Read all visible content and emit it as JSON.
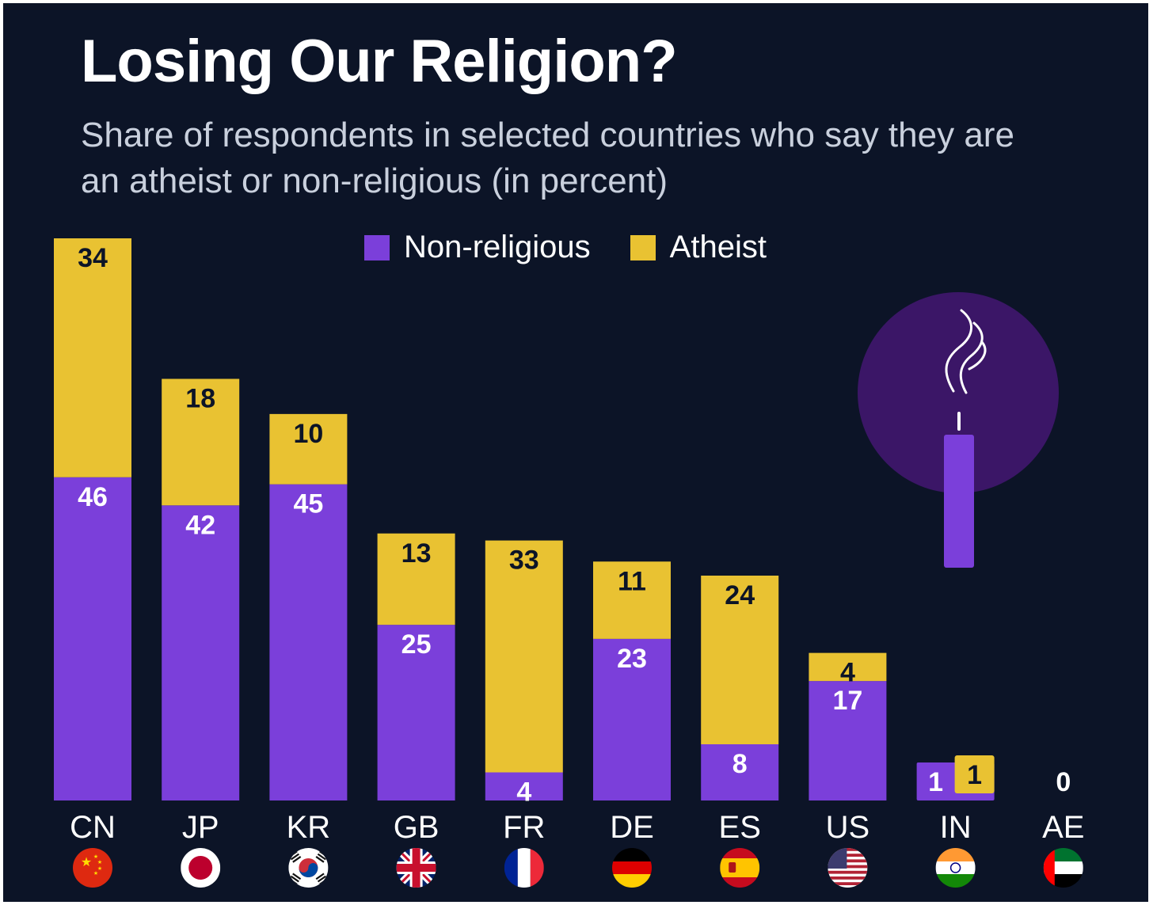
{
  "chart_data": {
    "type": "bar",
    "stacked": true,
    "title": "Losing Our Religion?",
    "subtitle": "Share of respondents in selected countries who say they are an atheist or non-religious (in percent)",
    "categories": [
      "CN",
      "JP",
      "KR",
      "GB",
      "FR",
      "DE",
      "ES",
      "US",
      "IN",
      "AE"
    ],
    "series": [
      {
        "name": "Non-religious",
        "color": "#7b3fda",
        "values": [
          46,
          42,
          45,
          25,
          4,
          23,
          8,
          17,
          1,
          0
        ]
      },
      {
        "name": "Atheist",
        "color": "#e9c232",
        "values": [
          34,
          18,
          10,
          13,
          33,
          11,
          24,
          4,
          1,
          0
        ]
      }
    ],
    "ylim": [
      0,
      80
    ],
    "xlabel": "",
    "ylabel": "",
    "legend_position": "top-center",
    "value_labels": {
      "non_religious": [
        "46",
        "42",
        "45",
        "25",
        "4",
        "23",
        "8",
        "17",
        "1",
        ""
      ],
      "atheist": [
        "34",
        "18",
        "10",
        "13",
        "33",
        "11",
        "24",
        "4",
        "1",
        ""
      ],
      "zero_label": "0"
    },
    "flags": [
      "china-flag-icon",
      "japan-flag-icon",
      "south-korea-flag-icon",
      "uk-flag-icon",
      "france-flag-icon",
      "germany-flag-icon",
      "spain-flag-icon",
      "usa-flag-icon",
      "india-flag-icon",
      "uae-flag-icon"
    ],
    "colors": {
      "background": "#0c1427",
      "circle": "#3b1667",
      "candle": "#7b3fda"
    },
    "illustration": "candle-icon"
  }
}
